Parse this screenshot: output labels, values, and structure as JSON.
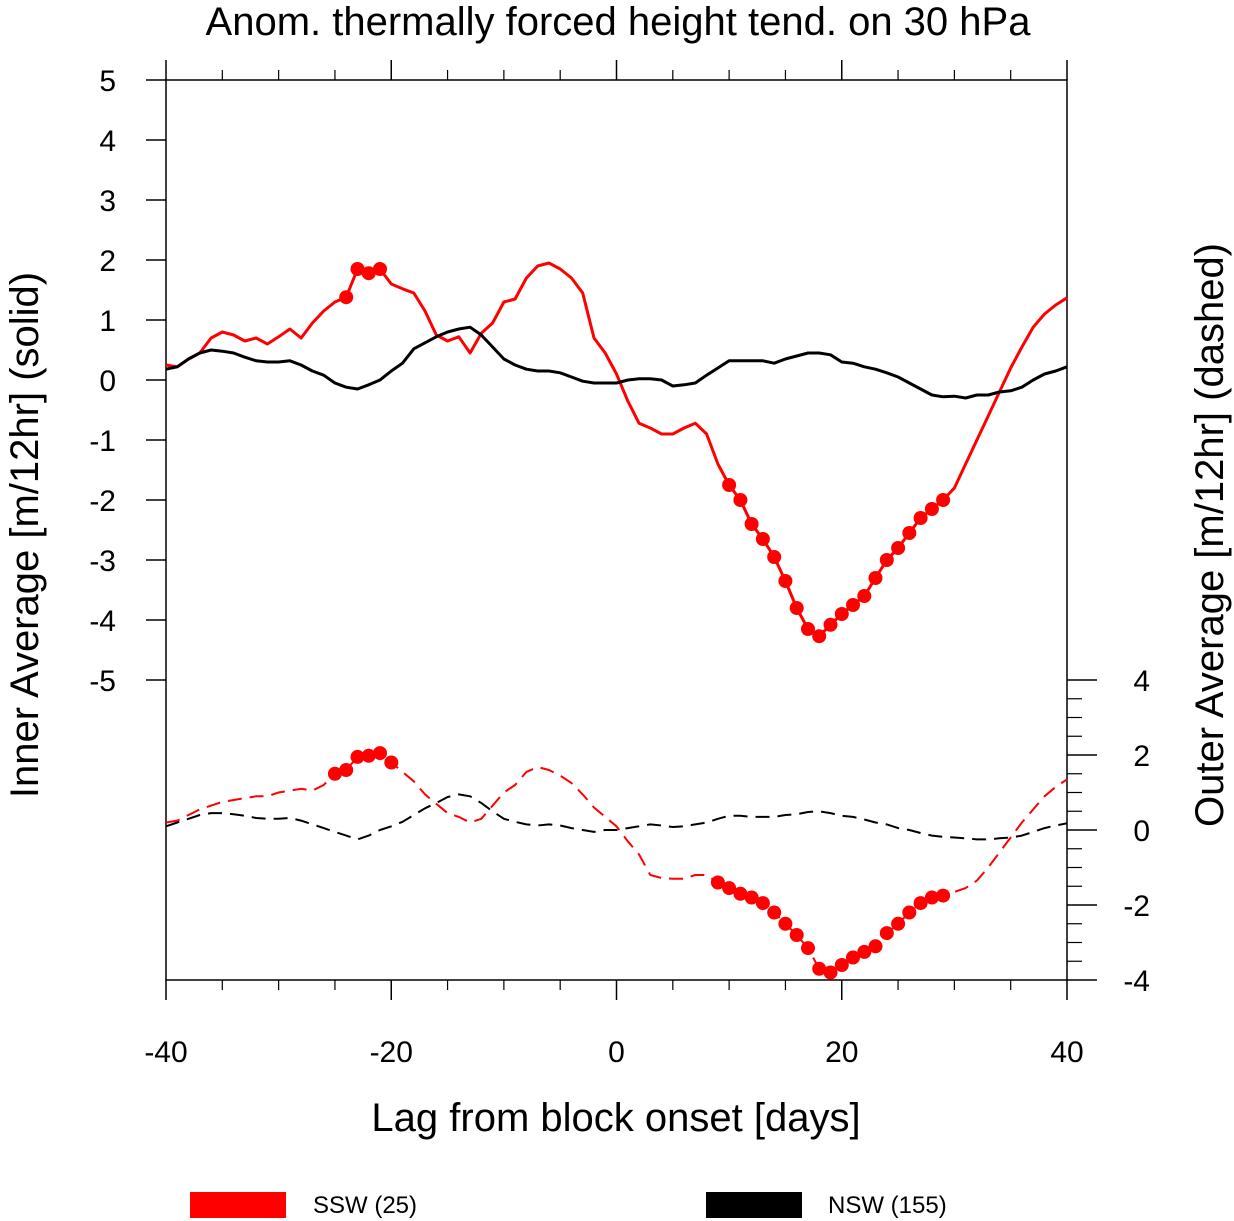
{
  "chart_data": {
    "type": "line",
    "title": "Anom. thermally forced height tend. on 30 hPa",
    "xlabel": "Lag from block onset [days]",
    "ylabel_left": "Inner Average [m/12hr] (solid)",
    "ylabel_right": "Outer Average [m/12hr] (dashed)",
    "xlim": [
      -40,
      40
    ],
    "xticks": [
      "-40",
      "-20",
      "0",
      "20",
      "40"
    ],
    "inner_ylim": [
      -5,
      5
    ],
    "inner_yticks": [
      "5",
      "4",
      "3",
      "2",
      "1",
      "0",
      "-1",
      "-2",
      "-3",
      "-4",
      "-5"
    ],
    "outer_ylim": [
      -4,
      4
    ],
    "outer_yticks": [
      "4",
      "2",
      "0",
      "-2",
      "-4"
    ],
    "grid": false,
    "legend_position": "bottom",
    "series": [
      {
        "name": "SSW (25)",
        "panel": "inner",
        "style": "solid",
        "color": "#ff0000",
        "x": [
          -40,
          -39,
          -38,
          -37,
          -36,
          -35,
          -34,
          -33,
          -32,
          -31,
          -30,
          -29,
          -28,
          -27,
          -26,
          -25,
          -24,
          -23,
          -22,
          -21,
          -20,
          -19,
          -18,
          -17,
          -16,
          -15,
          -14,
          -13,
          -12,
          -11,
          -10,
          -9,
          -8,
          -7,
          -6,
          -5,
          -4,
          -3,
          -2,
          -1,
          0,
          1,
          2,
          3,
          4,
          5,
          6,
          7,
          8,
          9,
          10,
          11,
          12,
          13,
          14,
          15,
          16,
          17,
          18,
          19,
          20,
          21,
          22,
          23,
          24,
          25,
          26,
          27,
          28,
          29,
          30,
          31,
          32,
          33,
          34,
          35,
          36,
          37,
          38,
          39,
          40
        ],
        "y": [
          0.25,
          0.22,
          0.35,
          0.45,
          0.7,
          0.8,
          0.75,
          0.65,
          0.7,
          0.6,
          0.72,
          0.85,
          0.7,
          0.95,
          1.15,
          1.3,
          1.38,
          1.85,
          1.78,
          1.85,
          1.6,
          1.52,
          1.45,
          1.15,
          0.75,
          0.65,
          0.72,
          0.45,
          0.78,
          0.95,
          1.3,
          1.35,
          1.7,
          1.9,
          1.95,
          1.85,
          1.7,
          1.45,
          0.7,
          0.45,
          0.1,
          -0.35,
          -0.72,
          -0.8,
          -0.9,
          -0.9,
          -0.8,
          -0.72,
          -0.9,
          -1.4,
          -1.75,
          -2.0,
          -2.4,
          -2.65,
          -2.95,
          -3.35,
          -3.8,
          -4.15,
          -4.27,
          -4.08,
          -3.9,
          -3.75,
          -3.6,
          -3.3,
          -3.0,
          -2.8,
          -2.55,
          -2.3,
          -2.15,
          -2.0,
          -1.8,
          -1.4,
          -1.0,
          -0.6,
          -0.2,
          0.2,
          0.55,
          0.88,
          1.1,
          1.25,
          1.37
        ],
        "significant_x": [
          -24,
          -23,
          -22,
          -21,
          10,
          11,
          12,
          13,
          14,
          15,
          16,
          17,
          18,
          19,
          20,
          21,
          22,
          23,
          24,
          25,
          26,
          27,
          28,
          29
        ]
      },
      {
        "name": "NSW (155)",
        "panel": "inner",
        "style": "solid",
        "color": "#000000",
        "x": [
          -40,
          -39,
          -38,
          -37,
          -36,
          -35,
          -34,
          -33,
          -32,
          -31,
          -30,
          -29,
          -28,
          -27,
          -26,
          -25,
          -24,
          -23,
          -22,
          -21,
          -20,
          -19,
          -18,
          -17,
          -16,
          -15,
          -14,
          -13,
          -12,
          -11,
          -10,
          -9,
          -8,
          -7,
          -6,
          -5,
          -4,
          -3,
          -2,
          -1,
          0,
          1,
          2,
          3,
          4,
          5,
          6,
          7,
          8,
          9,
          10,
          11,
          12,
          13,
          14,
          15,
          16,
          17,
          18,
          19,
          20,
          21,
          22,
          23,
          24,
          25,
          26,
          27,
          28,
          29,
          30,
          31,
          32,
          33,
          34,
          35,
          36,
          37,
          38,
          39,
          40
        ],
        "y": [
          0.18,
          0.22,
          0.35,
          0.45,
          0.5,
          0.48,
          0.45,
          0.38,
          0.32,
          0.3,
          0.3,
          0.32,
          0.25,
          0.15,
          0.08,
          -0.05,
          -0.12,
          -0.15,
          -0.08,
          0.0,
          0.15,
          0.28,
          0.52,
          0.62,
          0.72,
          0.8,
          0.85,
          0.88,
          0.75,
          0.55,
          0.35,
          0.25,
          0.18,
          0.15,
          0.15,
          0.12,
          0.05,
          -0.02,
          -0.05,
          -0.05,
          -0.05,
          0.0,
          0.02,
          0.02,
          0.0,
          -0.1,
          -0.08,
          -0.05,
          0.08,
          0.2,
          0.32,
          0.32,
          0.32,
          0.32,
          0.28,
          0.35,
          0.4,
          0.45,
          0.45,
          0.42,
          0.3,
          0.28,
          0.22,
          0.18,
          0.12,
          0.05,
          -0.05,
          -0.15,
          -0.25,
          -0.28,
          -0.27,
          -0.3,
          -0.25,
          -0.25,
          -0.2,
          -0.18,
          -0.12,
          0.0,
          0.1,
          0.15,
          0.22
        ],
        "significant_x": []
      },
      {
        "name": "SSW (25)",
        "panel": "outer",
        "style": "dashed",
        "color": "#ff0000",
        "x": [
          -40,
          -39,
          -38,
          -37,
          -36,
          -35,
          -34,
          -33,
          -32,
          -31,
          -30,
          -29,
          -28,
          -27,
          -26,
          -25,
          -24,
          -23,
          -22,
          -21,
          -20,
          -19,
          -18,
          -17,
          -16,
          -15,
          -14,
          -13,
          -12,
          -11,
          -10,
          -9,
          -8,
          -7,
          -6,
          -5,
          -4,
          -3,
          -2,
          -1,
          0,
          1,
          2,
          3,
          4,
          5,
          6,
          7,
          8,
          9,
          10,
          11,
          12,
          13,
          14,
          15,
          16,
          17,
          18,
          19,
          20,
          21,
          22,
          23,
          24,
          25,
          26,
          27,
          28,
          29,
          30,
          31,
          32,
          33,
          34,
          35,
          36,
          37,
          38,
          39,
          40
        ],
        "y": [
          0.2,
          0.25,
          0.4,
          0.55,
          0.65,
          0.75,
          0.8,
          0.85,
          0.9,
          0.9,
          1.0,
          1.05,
          1.1,
          1.05,
          1.2,
          1.5,
          1.6,
          1.95,
          1.98,
          2.05,
          1.8,
          1.55,
          1.3,
          0.95,
          0.7,
          0.45,
          0.35,
          0.2,
          0.3,
          0.65,
          1.0,
          1.2,
          1.55,
          1.68,
          1.6,
          1.45,
          1.25,
          0.95,
          0.6,
          0.35,
          0.1,
          -0.3,
          -0.65,
          -1.2,
          -1.28,
          -1.3,
          -1.3,
          -1.2,
          -1.2,
          -1.4,
          -1.55,
          -1.7,
          -1.8,
          -1.95,
          -2.2,
          -2.5,
          -2.8,
          -3.15,
          -3.7,
          -3.8,
          -3.6,
          -3.4,
          -3.25,
          -3.1,
          -2.75,
          -2.5,
          -2.2,
          -1.95,
          -1.8,
          -1.75,
          -1.65,
          -1.55,
          -1.35,
          -1.0,
          -0.6,
          -0.2,
          0.2,
          0.55,
          0.9,
          1.15,
          1.35
        ],
        "significant_x": [
          -25,
          -24,
          -23,
          -22,
          -21,
          -20,
          9,
          10,
          11,
          12,
          13,
          14,
          15,
          16,
          17,
          18,
          19,
          20,
          21,
          22,
          23,
          24,
          25,
          26,
          27,
          28,
          29
        ]
      },
      {
        "name": "NSW (155)",
        "panel": "outer",
        "style": "dashed",
        "color": "#000000",
        "x": [
          -40,
          -39,
          -38,
          -37,
          -36,
          -35,
          -34,
          -33,
          -32,
          -31,
          -30,
          -29,
          -28,
          -27,
          -26,
          -25,
          -24,
          -23,
          -22,
          -21,
          -20,
          -19,
          -18,
          -17,
          -16,
          -15,
          -14,
          -13,
          -12,
          -11,
          -10,
          -9,
          -8,
          -7,
          -6,
          -5,
          -4,
          -3,
          -2,
          -1,
          0,
          1,
          2,
          3,
          4,
          5,
          6,
          7,
          8,
          9,
          10,
          11,
          12,
          13,
          14,
          15,
          16,
          17,
          18,
          19,
          20,
          21,
          22,
          23,
          24,
          25,
          26,
          27,
          28,
          29,
          30,
          31,
          32,
          33,
          34,
          35,
          36,
          37,
          38,
          39,
          40
        ],
        "y": [
          0.1,
          0.2,
          0.3,
          0.4,
          0.45,
          0.45,
          0.42,
          0.38,
          0.32,
          0.3,
          0.3,
          0.32,
          0.25,
          0.15,
          0.05,
          -0.05,
          -0.15,
          -0.25,
          -0.15,
          0.0,
          0.1,
          0.22,
          0.4,
          0.58,
          0.72,
          0.88,
          0.95,
          0.9,
          0.72,
          0.5,
          0.3,
          0.22,
          0.15,
          0.12,
          0.15,
          0.12,
          0.05,
          0.0,
          -0.05,
          0.0,
          0.0,
          0.05,
          0.1,
          0.15,
          0.12,
          0.08,
          0.1,
          0.15,
          0.2,
          0.3,
          0.38,
          0.38,
          0.35,
          0.35,
          0.35,
          0.4,
          0.42,
          0.48,
          0.5,
          0.45,
          0.38,
          0.35,
          0.28,
          0.2,
          0.15,
          0.05,
          0.0,
          -0.08,
          -0.15,
          -0.18,
          -0.2,
          -0.22,
          -0.25,
          -0.25,
          -0.22,
          -0.2,
          -0.15,
          -0.05,
          0.05,
          0.12,
          0.18
        ],
        "significant_x": []
      }
    ],
    "legend": [
      {
        "label": "SSW (25)",
        "color": "#ff0000"
      },
      {
        "label": "NSW (155)",
        "color": "#000000"
      }
    ]
  }
}
